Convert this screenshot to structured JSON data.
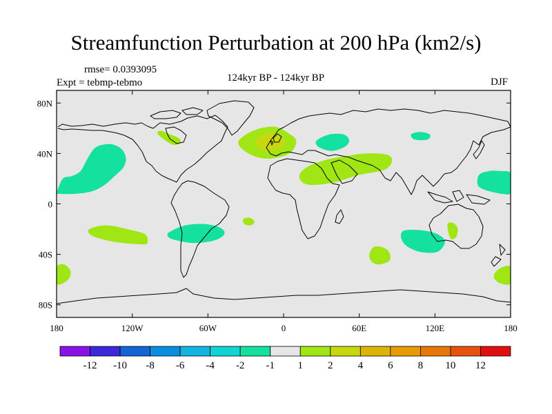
{
  "title": "Streamfunction Perturbation at 200 hPa (km2/s)",
  "rmse_label": "rmse= 0.0393095",
  "expt_label": "Expt = tebmp-tebmo",
  "center_label": "124kyr BP - 124kyr BP",
  "season_label": "DJF",
  "chart_data": {
    "type": "heatmap",
    "projection": "cylindrical-equidistant",
    "title": "Streamfunction Perturbation at 200 hPa (km2/s)",
    "xlim": [
      -180,
      180
    ],
    "ylim": [
      -90,
      90
    ],
    "x_ticks": [
      {
        "value": -180,
        "label": "180"
      },
      {
        "value": -120,
        "label": "120W"
      },
      {
        "value": -60,
        "label": "60W"
      },
      {
        "value": 0,
        "label": "0"
      },
      {
        "value": 60,
        "label": "60E"
      },
      {
        "value": 120,
        "label": "120E"
      },
      {
        "value": 180,
        "label": "180"
      }
    ],
    "y_ticks": [
      {
        "value": 80,
        "label": "80N"
      },
      {
        "value": 40,
        "label": "40N"
      },
      {
        "value": 0,
        "label": "0"
      },
      {
        "value": -40,
        "label": "40S"
      },
      {
        "value": -80,
        "label": "80S"
      }
    ],
    "background_range": "-1 to 1",
    "colorbar": {
      "colors": [
        "#8a12e6",
        "#3c28d8",
        "#1464d8",
        "#0a8ce0",
        "#14b4e0",
        "#10d4d4",
        "#14e0a0",
        "#e6e6e6",
        "#a0e614",
        "#c8d810",
        "#dcb408",
        "#e69a04",
        "#e67808",
        "#e65010",
        "#e01010"
      ],
      "labels": [
        "-12",
        "-10",
        "-8",
        "-6",
        "-4",
        "-2",
        "-1",
        "1",
        "2",
        "4",
        "6",
        "8",
        "10",
        "12"
      ]
    },
    "regions": [
      {
        "name": "north-pacific-negative",
        "level": "-2 to -1",
        "color": "#14e0a0",
        "points": [
          [
            -180,
            9
          ],
          [
            -175,
            20
          ],
          [
            -168,
            22
          ],
          [
            -161,
            26
          ],
          [
            -156,
            35
          ],
          [
            -150,
            44
          ],
          [
            -143,
            47
          ],
          [
            -135,
            47
          ],
          [
            -128,
            43
          ],
          [
            -125,
            36
          ],
          [
            -127,
            29
          ],
          [
            -133,
            23
          ],
          [
            -142,
            15
          ],
          [
            -152,
            10
          ],
          [
            -165,
            8
          ],
          [
            -180,
            8
          ]
        ]
      },
      {
        "name": "north-pacific-negative-wrap",
        "level": "-2 to -1",
        "color": "#14e0a0",
        "points": [
          [
            180,
            9
          ],
          [
            173,
            8
          ],
          [
            160,
            11
          ],
          [
            154,
            15
          ],
          [
            155,
            23
          ],
          [
            163,
            26
          ],
          [
            172,
            26
          ],
          [
            180,
            24
          ]
        ]
      },
      {
        "name": "south-pacific-positive",
        "level": "1 to 2",
        "color": "#a0e614",
        "points": [
          [
            -152,
            -19
          ],
          [
            -140,
            -17
          ],
          [
            -124,
            -20
          ],
          [
            -110,
            -24
          ],
          [
            -108,
            -31
          ],
          [
            -115,
            -32
          ],
          [
            -135,
            -30
          ],
          [
            -150,
            -26
          ],
          [
            -155,
            -22
          ]
        ]
      },
      {
        "name": "southeast-pacific-negative",
        "level": "-2 to -1",
        "color": "#14e0a0",
        "points": [
          [
            -90,
            -22
          ],
          [
            -78,
            -17
          ],
          [
            -62,
            -16
          ],
          [
            -50,
            -19
          ],
          [
            -47,
            -24
          ],
          [
            -55,
            -29
          ],
          [
            -72,
            -31
          ],
          [
            -88,
            -28
          ],
          [
            -92,
            -25
          ]
        ]
      },
      {
        "name": "south-atlantic-positive",
        "level": "1 to 2",
        "color": "#a0e614",
        "points": [
          [
            -32,
            -12
          ],
          [
            -27,
            -11
          ],
          [
            -23,
            -14
          ],
          [
            -26,
            -17
          ],
          [
            -31,
            -16
          ]
        ]
      },
      {
        "name": "far-south-pacific-positive",
        "level": "1 to 2",
        "color": "#a0e614",
        "points": [
          [
            -180,
            -50
          ],
          [
            -174,
            -48
          ],
          [
            -169,
            -53
          ],
          [
            -170,
            -59
          ],
          [
            -175,
            -63
          ],
          [
            -180,
            -63
          ]
        ]
      },
      {
        "name": "far-south-pacific-positive-wrap",
        "level": "1 to 2",
        "color": "#a0e614",
        "points": [
          [
            180,
            -50
          ],
          [
            174,
            -50
          ],
          [
            168,
            -54
          ],
          [
            167,
            -59
          ],
          [
            172,
            -63
          ],
          [
            180,
            -63
          ]
        ]
      },
      {
        "name": "north-america-positive",
        "level": "1 to 2",
        "color": "#a0e614",
        "points": [
          [
            -98,
            58
          ],
          [
            -92,
            56
          ],
          [
            -83,
            52
          ],
          [
            -82,
            48
          ],
          [
            -88,
            47
          ],
          [
            -96,
            52
          ],
          [
            -100,
            56
          ]
        ]
      },
      {
        "name": "north-atlantic-positive",
        "level": "1 to 2",
        "color": "#a0e614",
        "points": [
          [
            -36,
            48
          ],
          [
            -30,
            55
          ],
          [
            -18,
            60
          ],
          [
            -6,
            61
          ],
          [
            4,
            56
          ],
          [
            10,
            50
          ],
          [
            6,
            41
          ],
          [
            -4,
            37
          ],
          [
            -16,
            36
          ],
          [
            -28,
            40
          ]
        ]
      },
      {
        "name": "north-atlantic-core",
        "level": "2 to 4",
        "color": "#c8d810",
        "points": [
          [
            -22,
            51
          ],
          [
            -13,
            56
          ],
          [
            -3,
            55
          ],
          [
            1,
            48
          ],
          [
            -4,
            43
          ],
          [
            -12,
            42
          ],
          [
            -20,
            45
          ]
        ]
      },
      {
        "name": "europe-negative",
        "level": "-2 to -1",
        "color": "#14e0a0",
        "points": [
          [
            26,
            50
          ],
          [
            36,
            55
          ],
          [
            48,
            55
          ],
          [
            52,
            50
          ],
          [
            48,
            45
          ],
          [
            38,
            42
          ],
          [
            28,
            45
          ]
        ]
      },
      {
        "name": "siberia-negative",
        "level": "-2 to -1",
        "color": "#14e0a0",
        "points": [
          [
            101,
            55
          ],
          [
            108,
            57
          ],
          [
            116,
            55
          ],
          [
            114,
            51
          ],
          [
            104,
            51
          ]
        ]
      },
      {
        "name": "middle-east-positive",
        "level": "1 to 2",
        "color": "#a0e614",
        "points": [
          [
            13,
            24
          ],
          [
            20,
            30
          ],
          [
            34,
            35
          ],
          [
            50,
            38
          ],
          [
            66,
            40
          ],
          [
            82,
            39
          ],
          [
            86,
            34
          ],
          [
            80,
            27
          ],
          [
            60,
            23
          ],
          [
            40,
            17
          ],
          [
            22,
            15
          ],
          [
            14,
            18
          ]
        ]
      },
      {
        "name": "south-indian-positive",
        "level": "1 to 2",
        "color": "#a0e614",
        "points": [
          [
            72,
            -34
          ],
          [
            80,
            -35
          ],
          [
            84,
            -39
          ],
          [
            84,
            -45
          ],
          [
            76,
            -48
          ],
          [
            70,
            -46
          ],
          [
            68,
            -40
          ]
        ]
      },
      {
        "name": "australia-negative",
        "level": "-2 to -1",
        "color": "#14e0a0",
        "points": [
          [
            96,
            -21
          ],
          [
            110,
            -21
          ],
          [
            122,
            -24
          ],
          [
            128,
            -30
          ],
          [
            122,
            -38
          ],
          [
            108,
            -38
          ],
          [
            97,
            -33
          ],
          [
            93,
            -26
          ]
        ]
      },
      {
        "name": "east-australia-positive",
        "level": "1 to 2",
        "color": "#a0e614",
        "points": [
          [
            130,
            -16
          ],
          [
            134,
            -15
          ],
          [
            138,
            -19
          ],
          [
            137,
            -26
          ],
          [
            133,
            -28
          ],
          [
            131,
            -24
          ]
        ]
      }
    ]
  }
}
